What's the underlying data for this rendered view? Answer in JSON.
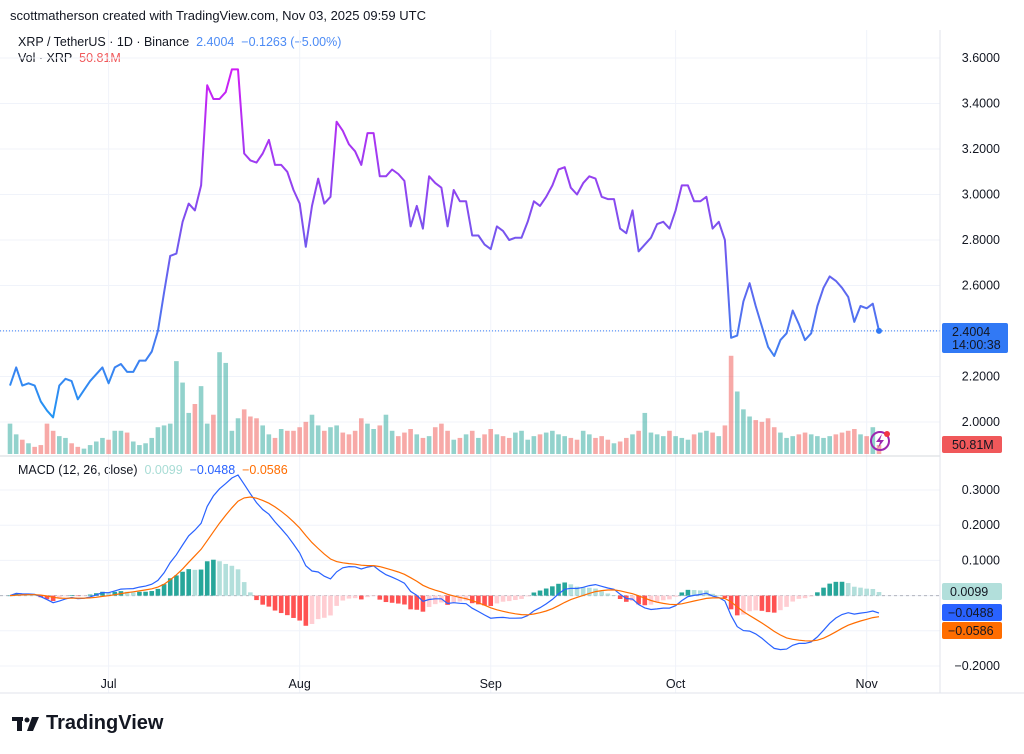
{
  "header": {
    "credit": "scottmatherson created with TradingView.com, Nov 03, 2025 09:59 UTC",
    "symbol": "XRP / TetherUS · 1D · Binance",
    "last": "2.4004",
    "change": "−0.1263 (−5.00%)",
    "vol_label": "Vol · XRP",
    "vol_value": "50.81M",
    "macd_label": "MACD (12, 26, close)",
    "macd_hist": "0.0099",
    "macd_line": "−0.0488",
    "macd_signal": "−0.0586"
  },
  "price_box": {
    "price": "2.4004",
    "countdown": "14:00:38"
  },
  "vol_box": "50.81M",
  "macd_boxes": {
    "hist": "0.0099",
    "macd": "−0.0488",
    "signal": "−0.0586"
  },
  "logo": "TradingView",
  "colors": {
    "line_low": "#2196f3",
    "line_mid": "#7b52ee",
    "line_high": "#d01cf5",
    "up": "#26a69a",
    "down": "#ef5350",
    "macd": "#2962ff",
    "signal": "#ff6d00",
    "price_box": "#3179f5"
  },
  "chart_data": [
    {
      "type": "line",
      "title": "XRP / TetherUS · 1D · Binance",
      "period": "Jun 15 – Nov 3, 2025 (daily)",
      "x_ticks": [
        "Jul",
        "Aug",
        "Sep",
        "Oct",
        "Nov"
      ],
      "y_ticks": [
        "3.6000",
        "3.4000",
        "3.2000",
        "3.0000",
        "2.8000",
        "2.6000",
        "2.2000",
        "2.0000"
      ],
      "ylim": [
        1.93,
        3.72
      ],
      "grid": true,
      "close": [
        2.16,
        2.24,
        2.16,
        2.17,
        2.16,
        2.09,
        2.05,
        2.02,
        2.16,
        2.19,
        2.18,
        2.1,
        2.14,
        2.18,
        2.21,
        2.24,
        2.17,
        2.24,
        2.255,
        2.22,
        2.22,
        2.27,
        2.27,
        2.31,
        2.4,
        2.57,
        2.73,
        2.74,
        2.88,
        2.96,
        2.93,
        3.04,
        3.48,
        3.42,
        3.42,
        3.45,
        3.55,
        3.55,
        3.18,
        3.15,
        3.14,
        3.18,
        3.24,
        3.13,
        3.13,
        3.1,
        3.02,
        2.96,
        2.77,
        2.95,
        3.07,
        2.96,
        2.99,
        3.32,
        3.28,
        3.22,
        3.19,
        3.13,
        3.27,
        3.27,
        3.08,
        3.08,
        3.11,
        3.09,
        3.06,
        2.86,
        2.95,
        2.85,
        3.08,
        3.05,
        3.03,
        2.86,
        3.02,
        2.97,
        2.97,
        2.82,
        2.82,
        2.78,
        2.76,
        2.86,
        2.84,
        2.8,
        2.81,
        2.81,
        2.88,
        2.97,
        2.95,
        2.99,
        3.04,
        3.11,
        3.12,
        3.03,
        3.0,
        3.05,
        3.08,
        3.07,
        2.99,
        2.98,
        2.98,
        2.85,
        2.83,
        2.93,
        2.75,
        2.78,
        2.81,
        2.87,
        2.88,
        2.85,
        2.93,
        3.04,
        3.04,
        2.97,
        2.97,
        2.99,
        2.85,
        2.88,
        2.8,
        2.37,
        2.38,
        2.53,
        2.61,
        2.51,
        2.42,
        2.33,
        2.29,
        2.36,
        2.39,
        2.49,
        2.43,
        2.36,
        2.39,
        2.51,
        2.59,
        2.64,
        2.62,
        2.59,
        2.55,
        2.44,
        2.51,
        2.5,
        2.52,
        2.4004
      ]
    },
    {
      "type": "bar",
      "title": "Vol · XRP",
      "unit": "M",
      "values": [
        170,
        110,
        80,
        60,
        40,
        50,
        170,
        130,
        100,
        90,
        60,
        40,
        30,
        50,
        70,
        90,
        80,
        130,
        130,
        120,
        70,
        50,
        60,
        90,
        150,
        160,
        170,
        520,
        400,
        230,
        280,
        380,
        170,
        220,
        570,
        510,
        130,
        200,
        250,
        210,
        200,
        160,
        110,
        90,
        140,
        130,
        130,
        150,
        180,
        220,
        160,
        130,
        150,
        160,
        120,
        110,
        130,
        200,
        170,
        140,
        160,
        220,
        130,
        100,
        120,
        140,
        110,
        90,
        100,
        150,
        170,
        130,
        80,
        90,
        110,
        130,
        90,
        110,
        140,
        110,
        100,
        90,
        120,
        130,
        80,
        100,
        110,
        120,
        130,
        110,
        100,
        90,
        80,
        130,
        110,
        90,
        100,
        80,
        60,
        70,
        90,
        110,
        130,
        230,
        120,
        110,
        100,
        130,
        100,
        90,
        80,
        110,
        120,
        130,
        120,
        100,
        160,
        550,
        350,
        250,
        210,
        190,
        180,
        200,
        150,
        120,
        90,
        100,
        110,
        120,
        110,
        100,
        90,
        100,
        110,
        120,
        130,
        140,
        110,
        100,
        150,
        50.81
      ]
    },
    {
      "type": "line",
      "title": "MACD (12, 26, close)",
      "params": {
        "fast": 12,
        "slow": 26,
        "signal": 9,
        "source": "close"
      },
      "y_ticks": [
        "0.3000",
        "0.2000",
        "0.1000",
        "−0.2000"
      ],
      "ylim": [
        -0.25,
        0.38
      ],
      "last": {
        "histogram": 0.0099,
        "macd": -0.0488,
        "signal": -0.0586
      }
    }
  ]
}
